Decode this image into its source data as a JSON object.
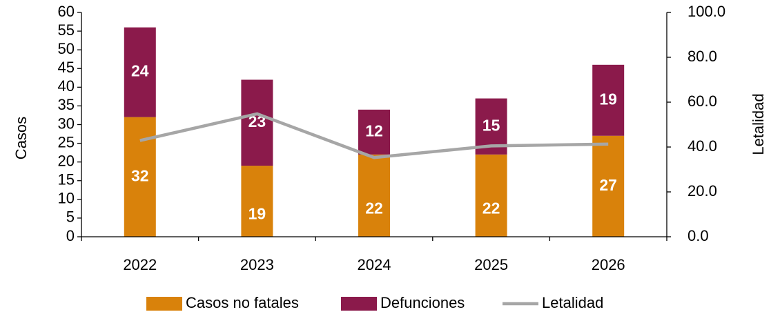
{
  "chart_data": {
    "type": "bar",
    "categories": [
      "2022",
      "2023",
      "2024",
      "2025",
      "2026"
    ],
    "series": [
      {
        "name": "Casos no fatales",
        "color": "#d9820b",
        "values": [
          32,
          19,
          22,
          22,
          27
        ]
      },
      {
        "name": "Defunciones",
        "color": "#8b1a4b",
        "values": [
          24,
          23,
          12,
          15,
          19
        ]
      },
      {
        "name": "Letalidad",
        "color": "#a6a6a6",
        "type": "line",
        "axis": "y2",
        "values": [
          42.9,
          54.8,
          35.3,
          40.5,
          41.3
        ]
      }
    ],
    "stacked": true,
    "ylabel": "Casos",
    "y2label": "Letalidad",
    "ylim": [
      0,
      60
    ],
    "yticks": [
      0,
      5,
      10,
      15,
      20,
      25,
      30,
      35,
      40,
      45,
      50,
      55,
      60
    ],
    "y2lim": [
      0,
      100
    ],
    "y2ticks": [
      {
        "value": 0,
        "label": "0.0"
      },
      {
        "value": 20,
        "label": "20.0"
      },
      {
        "value": 40,
        "label": "40.0"
      },
      {
        "value": 60,
        "label": "60.0"
      },
      {
        "value": 80,
        "label": "80.0"
      },
      {
        "value": 100,
        "label": "100.0"
      }
    ],
    "legend": "bottom"
  }
}
